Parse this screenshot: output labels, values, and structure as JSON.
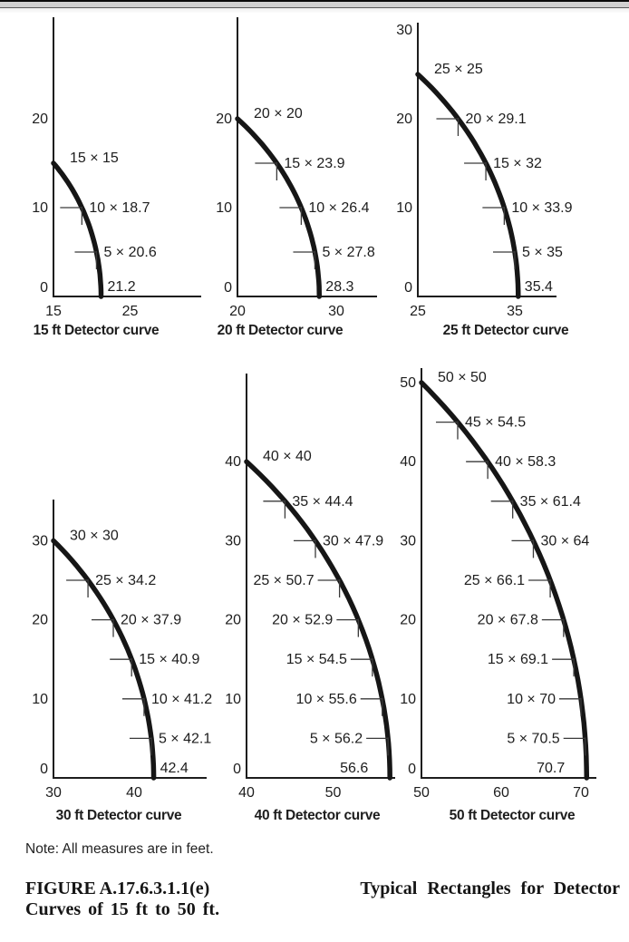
{
  "note": "Note: All measures are in feet.",
  "caption": {
    "figure_label": "FIGURE A.17.6.3.1.1(e)",
    "title_line1": "Typical Rectangles for Detector",
    "title_line2": "Curves of 15 ft to 50 ft."
  },
  "chart_data": [
    {
      "id": "15ft",
      "type": "line",
      "title": "15 ft Detector curve",
      "spacing_ft": 15,
      "radius_ft": 21.2,
      "x_ticks": [
        15,
        25
      ],
      "y_ticks": [
        0,
        10,
        20
      ],
      "xlim": [
        15,
        34
      ],
      "ylim": [
        0,
        31
      ],
      "points": [
        {
          "h": 15,
          "w": 15,
          "label": "15 × 15",
          "role": "start",
          "side": "right"
        },
        {
          "h": 10,
          "w": 18.7,
          "label": "10 × 18.7",
          "role": "mid",
          "side": "right"
        },
        {
          "h": 5,
          "w": 20.6,
          "label": "5 × 20.6",
          "role": "mid",
          "side": "right"
        },
        {
          "h": 0,
          "w": 21.2,
          "label": "21.2",
          "role": "end",
          "side": "right"
        }
      ]
    },
    {
      "id": "20ft",
      "type": "line",
      "title": "20 ft Detector curve",
      "spacing_ft": 20,
      "radius_ft": 28.3,
      "x_ticks": [
        20,
        30
      ],
      "y_ticks": [
        0,
        10,
        20
      ],
      "xlim": [
        20,
        34
      ],
      "ylim": [
        0,
        31
      ],
      "points": [
        {
          "h": 20,
          "w": 20,
          "label": "20 × 20",
          "role": "start",
          "side": "right"
        },
        {
          "h": 15,
          "w": 23.9,
          "label": "15 × 23.9",
          "role": "mid",
          "side": "right"
        },
        {
          "h": 10,
          "w": 26.4,
          "label": "10 × 26.4",
          "role": "mid",
          "side": "right"
        },
        {
          "h": 5,
          "w": 27.8,
          "label": "5 × 27.8",
          "role": "mid",
          "side": "right"
        },
        {
          "h": 0,
          "w": 28.3,
          "label": "28.3",
          "role": "end",
          "side": "right"
        }
      ]
    },
    {
      "id": "25ft",
      "type": "line",
      "title": "25 ft Detector curve",
      "spacing_ft": 25,
      "radius_ft": 35.4,
      "x_ticks": [
        25,
        35
      ],
      "y_ticks": [
        0,
        10,
        20,
        30
      ],
      "xlim": [
        25,
        39
      ],
      "ylim": [
        0,
        31
      ],
      "points": [
        {
          "h": 25,
          "w": 25,
          "label": "25 × 25",
          "role": "start",
          "side": "right"
        },
        {
          "h": 20,
          "w": 29.1,
          "label": "20 × 29.1",
          "role": "mid",
          "side": "right"
        },
        {
          "h": 15,
          "w": 32,
          "label": "15 × 32",
          "role": "mid",
          "side": "right"
        },
        {
          "h": 10,
          "w": 33.9,
          "label": "10 × 33.9",
          "role": "mid",
          "side": "right"
        },
        {
          "h": 5,
          "w": 35,
          "label": "5 × 35",
          "role": "mid",
          "side": "right"
        },
        {
          "h": 0,
          "w": 35.4,
          "label": "35.4",
          "role": "end",
          "side": "right"
        }
      ]
    },
    {
      "id": "30ft",
      "type": "line",
      "title": "30 ft Detector curve",
      "spacing_ft": 30,
      "radius_ft": 42.4,
      "x_ticks": [
        30,
        40
      ],
      "y_ticks": [
        0,
        10,
        20,
        30
      ],
      "xlim": [
        30,
        49
      ],
      "ylim": [
        0,
        35
      ],
      "points": [
        {
          "h": 30,
          "w": 30,
          "label": "30 × 30",
          "role": "start",
          "side": "right"
        },
        {
          "h": 25,
          "w": 34.2,
          "label": "25 × 34.2",
          "role": "mid",
          "side": "right"
        },
        {
          "h": 20,
          "w": 37.9,
          "label": "20 × 37.9",
          "role": "mid",
          "side": "right"
        },
        {
          "h": 15,
          "w": 40.9,
          "label": "15 × 40.9",
          "role": "mid",
          "side": "right"
        },
        {
          "h": 10,
          "w": 41.2,
          "label": "10 × 41.2",
          "role": "mid",
          "side": "right"
        },
        {
          "h": 5,
          "w": 42.1,
          "label": "5 × 42.1",
          "role": "mid",
          "side": "right"
        },
        {
          "h": 0,
          "w": 42.4,
          "label": "42.4",
          "role": "end",
          "side": "right"
        }
      ]
    },
    {
      "id": "40ft",
      "type": "line",
      "title": "40 ft Detector curve",
      "spacing_ft": 40,
      "radius_ft": 56.6,
      "x_ticks": [
        40,
        50
      ],
      "y_ticks": [
        0,
        10,
        20,
        30,
        40
      ],
      "xlim": [
        40,
        57
      ],
      "ylim": [
        0,
        51
      ],
      "points": [
        {
          "h": 40,
          "w": 40,
          "label": "40 × 40",
          "role": "start",
          "side": "right"
        },
        {
          "h": 35,
          "w": 44.4,
          "label": "35 × 44.4",
          "role": "mid",
          "side": "right"
        },
        {
          "h": 30,
          "w": 47.9,
          "label": "30 × 47.9",
          "role": "mid",
          "side": "right"
        },
        {
          "h": 25,
          "w": 50.7,
          "label": "25 × 50.7",
          "role": "mid",
          "side": "left"
        },
        {
          "h": 20,
          "w": 52.9,
          "label": "20 × 52.9",
          "role": "mid",
          "side": "left"
        },
        {
          "h": 15,
          "w": 54.5,
          "label": "15 × 54.5",
          "role": "mid",
          "side": "left"
        },
        {
          "h": 10,
          "w": 55.6,
          "label": "10 × 55.6",
          "role": "mid",
          "side": "left"
        },
        {
          "h": 5,
          "w": 56.2,
          "label": "5 × 56.2",
          "role": "mid",
          "side": "left"
        },
        {
          "h": 0,
          "w": 56.6,
          "label": "56.6",
          "role": "end",
          "side": "left"
        }
      ]
    },
    {
      "id": "50ft",
      "type": "line",
      "title": "50 ft Detector curve",
      "spacing_ft": 50,
      "radius_ft": 70.7,
      "x_ticks": [
        50,
        60,
        70
      ],
      "y_ticks": [
        0,
        10,
        20,
        30,
        40,
        50
      ],
      "xlim": [
        50,
        72
      ],
      "ylim": [
        0,
        52
      ],
      "points": [
        {
          "h": 50,
          "w": 50,
          "label": "50 × 50",
          "role": "start",
          "side": "right"
        },
        {
          "h": 45,
          "w": 54.5,
          "label": "45 × 54.5",
          "role": "mid",
          "side": "right"
        },
        {
          "h": 40,
          "w": 58.3,
          "label": "40 × 58.3",
          "role": "mid",
          "side": "right"
        },
        {
          "h": 35,
          "w": 61.4,
          "label": "35 × 61.4",
          "role": "mid",
          "side": "right"
        },
        {
          "h": 30,
          "w": 64,
          "label": "30 × 64",
          "role": "mid",
          "side": "right"
        },
        {
          "h": 25,
          "w": 66.1,
          "label": "25 × 66.1",
          "role": "mid",
          "side": "left"
        },
        {
          "h": 20,
          "w": 67.8,
          "label": "20 × 67.8",
          "role": "mid",
          "side": "left"
        },
        {
          "h": 15,
          "w": 69.1,
          "label": "15 × 69.1",
          "role": "mid",
          "side": "left"
        },
        {
          "h": 10,
          "w": 70,
          "label": "10 × 70",
          "role": "mid",
          "side": "left"
        },
        {
          "h": 5,
          "w": 70.5,
          "label": "5 × 70.5",
          "role": "mid",
          "side": "left"
        },
        {
          "h": 0,
          "w": 70.7,
          "label": "70.7",
          "role": "end",
          "side": "left"
        }
      ]
    }
  ]
}
